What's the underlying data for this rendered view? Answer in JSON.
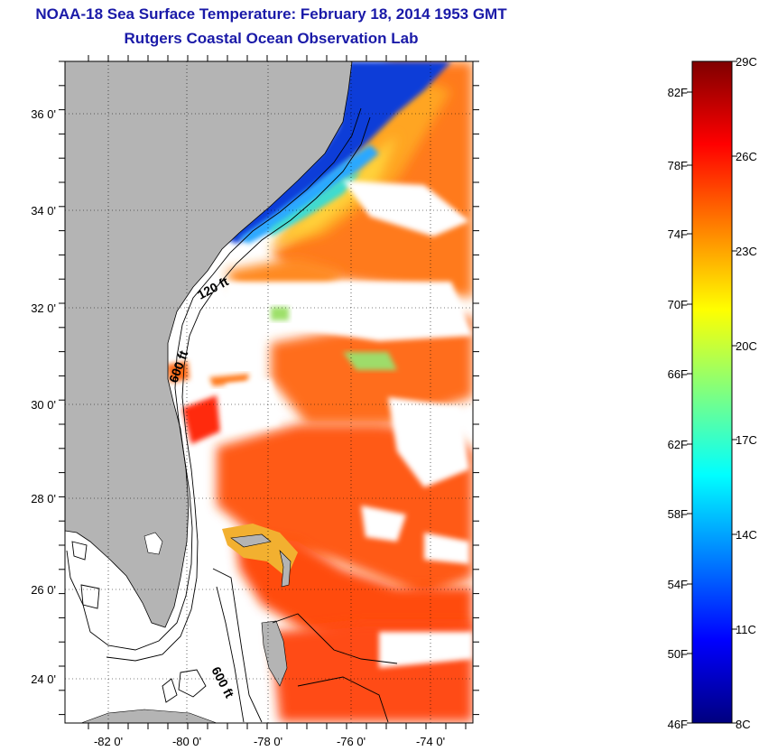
{
  "header": {
    "title": "NOAA-18 Sea Surface Temperature:  February 18, 2014 1953 GMT",
    "subtitle": "Rutgers Coastal Ocean Observation Lab"
  },
  "map": {
    "lat_ticks": [
      "36 0'",
      "34 0'",
      "32 0'",
      "30 0'",
      "28 0'",
      "26 0'",
      "24 0'"
    ],
    "lon_ticks": [
      "-82 0'",
      "-80 0'",
      "-78 0'",
      "-76 0'",
      "-74 0'"
    ],
    "contour_labels": [
      "120 ft",
      "600 ft",
      "600 ft"
    ],
    "colors": {
      "land": "#b4b4b4",
      "cloud": "#ffffff"
    }
  },
  "colorbar": {
    "f_labels": [
      "82F",
      "78F",
      "74F",
      "70F",
      "66F",
      "62F",
      "58F",
      "54F",
      "50F",
      "46F"
    ],
    "c_labels": [
      "29C",
      "26C",
      "23C",
      "20C",
      "17C",
      "14C",
      "11C",
      "8C"
    ],
    "range_c": [
      8,
      29
    ]
  }
}
